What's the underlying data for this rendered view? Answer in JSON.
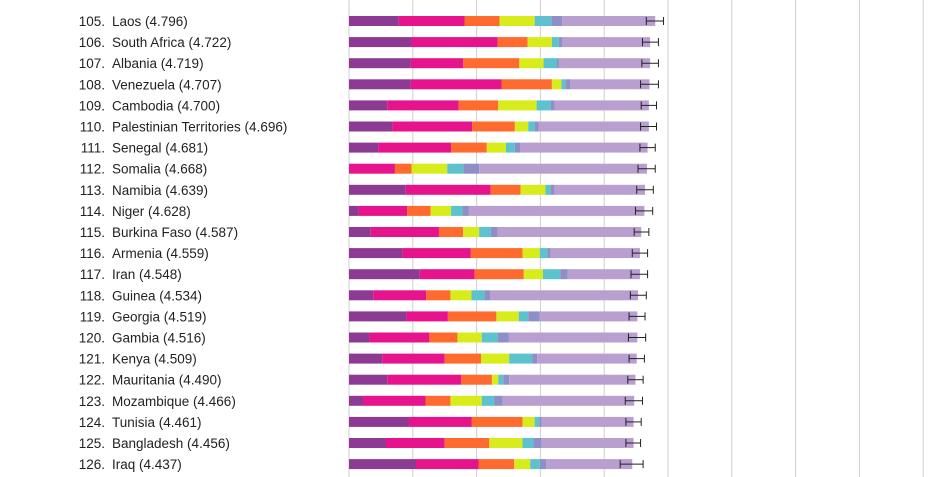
{
  "chart_data": {
    "type": "bar",
    "stacked": true,
    "orientation": "horizontal",
    "title": "",
    "xlabel": "",
    "ylabel": "",
    "xlim": [
      0,
      9
    ],
    "grid": true,
    "legend": "none",
    "series_colors": [
      "#8c3a93",
      "#e6138c",
      "#ff6a2e",
      "#d7ec1a",
      "#5cc2ce",
      "#8e8fc6",
      "#b99ed0"
    ],
    "rows": [
      {
        "label": "105. Laos (4.796)",
        "segments": [
          0.78,
          1.03,
          0.55,
          0.55,
          0.26,
          0.17,
          1.46
        ],
        "error": [
          4.66,
          4.93
        ]
      },
      {
        "label": "106. South Africa (4.722)",
        "segments": [
          0.98,
          1.35,
          0.47,
          0.38,
          0.11,
          0.06,
          1.37
        ],
        "error": [
          4.6,
          4.85
        ]
      },
      {
        "label": "107. Albania (4.719)",
        "segments": [
          0.97,
          0.82,
          0.88,
          0.38,
          0.21,
          0.03,
          1.43
        ],
        "error": [
          4.59,
          4.85
        ]
      },
      {
        "label": "108. Venezuela (4.707)",
        "segments": [
          0.97,
          1.42,
          0.79,
          0.15,
          0.06,
          0.08,
          1.24
        ],
        "error": [
          4.57,
          4.85
        ]
      },
      {
        "label": "109. Cambodia (4.700)",
        "segments": [
          0.6,
          1.12,
          0.62,
          0.6,
          0.22,
          0.06,
          1.48
        ],
        "error": [
          4.58,
          4.82
        ]
      },
      {
        "label": "110. Palestinian Territories (4.696)",
        "segments": [
          0.68,
          1.25,
          0.67,
          0.21,
          0.1,
          0.06,
          1.73
        ],
        "error": [
          4.57,
          4.82
        ]
      },
      {
        "label": "111. Senegal (4.681)",
        "segments": [
          0.46,
          1.14,
          0.56,
          0.3,
          0.14,
          0.08,
          2.0
        ],
        "error": [
          4.56,
          4.8
        ]
      },
      {
        "label": "112. Somalia (4.668)",
        "segments": [
          0.0,
          0.72,
          0.26,
          0.56,
          0.25,
          0.25,
          2.63
        ],
        "error": [
          4.53,
          4.8
        ]
      },
      {
        "label": "113. Namibia (4.639)",
        "segments": [
          0.89,
          1.33,
          0.47,
          0.39,
          0.08,
          0.06,
          1.42
        ],
        "error": [
          4.51,
          4.77
        ]
      },
      {
        "label": "114. Niger (4.628)",
        "segments": [
          0.15,
          0.76,
          0.37,
          0.32,
          0.18,
          0.1,
          2.75
        ],
        "error": [
          4.49,
          4.76
        ]
      },
      {
        "label": "115. Burkina Faso (4.587)",
        "segments": [
          0.34,
          1.07,
          0.38,
          0.25,
          0.18,
          0.11,
          2.25
        ],
        "error": [
          4.47,
          4.7
        ]
      },
      {
        "label": "116. Armenia (4.559)",
        "segments": [
          0.84,
          1.07,
          0.81,
          0.27,
          0.12,
          0.05,
          1.4
        ],
        "error": [
          4.44,
          4.68
        ]
      },
      {
        "label": "117. Iran (4.548)",
        "segments": [
          1.11,
          0.86,
          0.77,
          0.3,
          0.27,
          0.12,
          1.13
        ],
        "error": [
          4.42,
          4.68
        ]
      },
      {
        "label": "118. Guinea (4.534)",
        "segments": [
          0.38,
          0.83,
          0.38,
          0.33,
          0.2,
          0.09,
          2.32
        ],
        "error": [
          4.41,
          4.66
        ]
      },
      {
        "label": "119. Georgia (4.519)",
        "segments": [
          0.9,
          0.65,
          0.76,
          0.35,
          0.15,
          0.18,
          1.53
        ],
        "error": [
          4.39,
          4.64
        ]
      },
      {
        "label": "120. Gambia (4.516)",
        "segments": [
          0.32,
          0.94,
          0.44,
          0.38,
          0.25,
          0.17,
          2.02
        ],
        "error": [
          4.38,
          4.65
        ]
      },
      {
        "label": "121. Kenya (4.509)",
        "segments": [
          0.52,
          0.98,
          0.57,
          0.44,
          0.36,
          0.08,
          1.56
        ],
        "error": [
          4.39,
          4.63
        ]
      },
      {
        "label": "122. Mauritania (4.490)",
        "segments": [
          0.6,
          1.16,
          0.48,
          0.1,
          0.08,
          0.09,
          1.98
        ],
        "error": [
          4.37,
          4.61
        ]
      },
      {
        "label": "123. Mozambique (4.466)",
        "segments": [
          0.22,
          0.98,
          0.39,
          0.49,
          0.2,
          0.13,
          2.06
        ],
        "error": [
          4.33,
          4.6
        ]
      },
      {
        "label": "124. Tunisia (4.461)",
        "segments": [
          0.94,
          0.98,
          0.8,
          0.19,
          0.07,
          0.04,
          1.44
        ],
        "error": [
          4.34,
          4.58
        ]
      },
      {
        "label": "125. Bangladesh (4.456)",
        "segments": [
          0.58,
          0.92,
          0.7,
          0.52,
          0.17,
          0.13,
          1.44
        ],
        "error": [
          4.34,
          4.57
        ]
      },
      {
        "label": "126. Iraq (4.437)",
        "segments": [
          1.05,
          0.98,
          0.56,
          0.25,
          0.15,
          0.1,
          1.35
        ],
        "error": [
          4.25,
          4.61
        ]
      }
    ]
  }
}
